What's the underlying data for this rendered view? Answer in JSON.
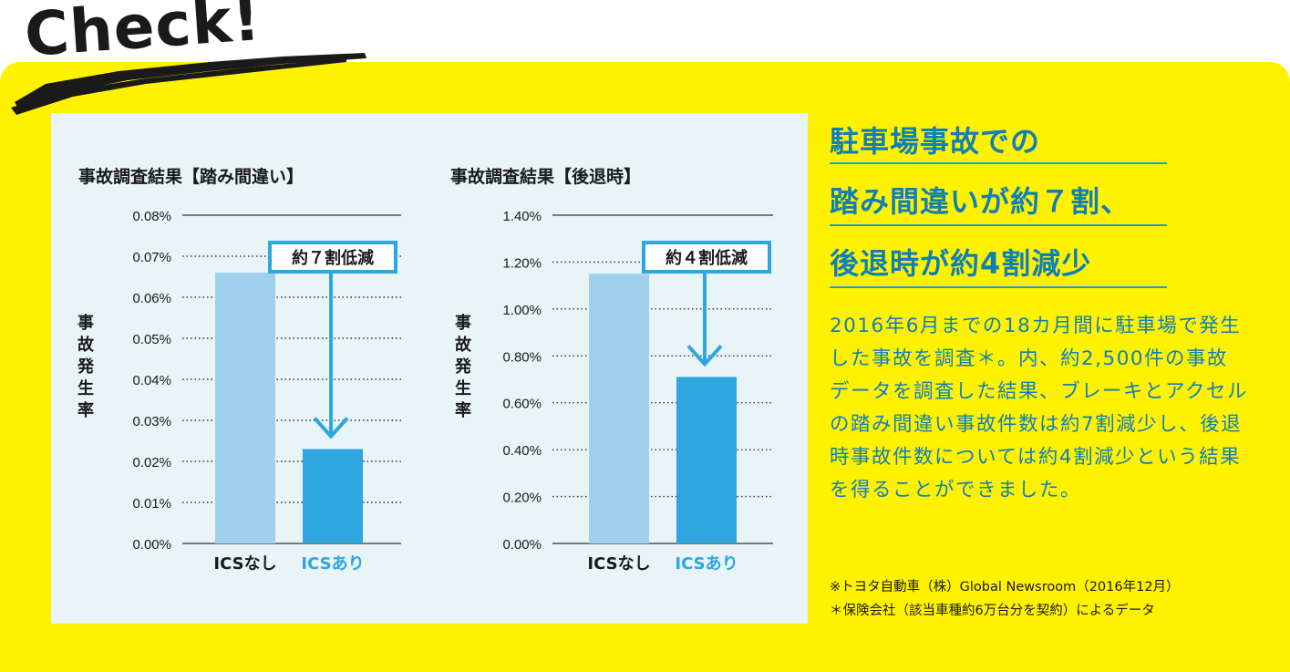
{
  "banner": {
    "title": "Check!"
  },
  "headline": {
    "lines": [
      "駐車場事故での",
      "踏み間違いが約７割、",
      "後退時が約4割減少"
    ]
  },
  "body_text": "2016年6月までの18カ月間に駐車場で発生した事故を調査＊。内、約2,500件の事故データを調査した結果、ブレーキとアクセルの踏み間違い事故件数は約7割減少し、後退時事故件数については約4割減少という結果を得ることができました。",
  "notes": [
    "※トヨタ自動車（株）Global Newsroom（2016年12月）",
    "＊保険会社（該当車種約6万台分を契約）によるデータ"
  ],
  "colors": {
    "panel_yellow": "#fff200",
    "chart_bg": "#e8f4f6",
    "bar_without": "#9fd0ee",
    "bar_with": "#2fa6e0",
    "accent_text": "#0f7fb8"
  },
  "chart_data": [
    {
      "type": "bar",
      "title": "事故調査結果【踏み間違い】",
      "ylabel": "事故発生率",
      "categories": [
        "ICSなし",
        "ICSあり"
      ],
      "values": [
        0.066,
        0.023
      ],
      "ylim": [
        0,
        0.08
      ],
      "yticks": [
        "0.00%",
        "0.01%",
        "0.02%",
        "0.03%",
        "0.04%",
        "0.05%",
        "0.06%",
        "0.07%",
        "0.08%"
      ],
      "annotation": "約７割低減",
      "grid": true
    },
    {
      "type": "bar",
      "title": "事故調査結果【後退時】",
      "ylabel": "事故発生率",
      "categories": [
        "ICSなし",
        "ICSあり"
      ],
      "values": [
        1.15,
        0.71
      ],
      "ylim": [
        0,
        1.4
      ],
      "yticks": [
        "0.00%",
        "0.20%",
        "0.40%",
        "0.60%",
        "0.80%",
        "1.00%",
        "1.20%",
        "1.40%"
      ],
      "annotation": "約４割低減",
      "grid": true
    }
  ]
}
